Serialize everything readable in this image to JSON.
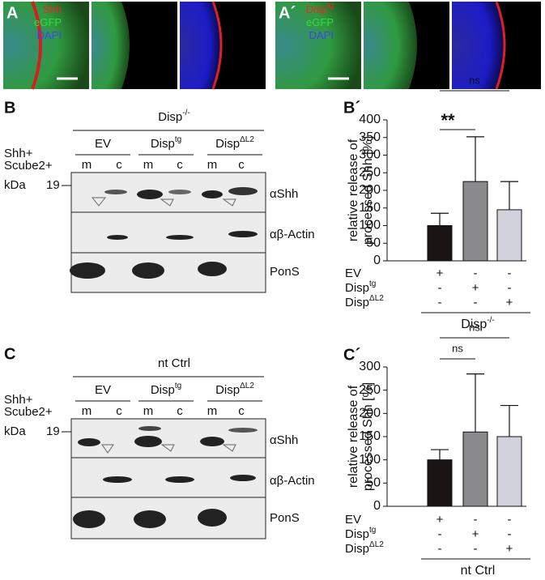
{
  "micrographs": [
    {
      "panel": "A",
      "channels": [
        {
          "label": "Shh"
        },
        {
          "label": "eGFP"
        },
        {
          "label": "DAPI"
        }
      ]
    },
    {
      "panel": "A´",
      "channels": [
        {
          "label": "Disp",
          "sup": "tg"
        },
        {
          "label": "eGFP"
        },
        {
          "label": "DAPI"
        }
      ]
    }
  ],
  "blots": [
    {
      "panel": "B",
      "condition": {
        "label": "Disp",
        "sup": "-/-"
      },
      "groups": [
        {
          "label": "EV"
        },
        {
          "label": "Disp",
          "sup": "tg"
        },
        {
          "label": "Disp",
          "sup": "ΔL2"
        }
      ],
      "treatment": [
        "Shh+",
        "Scube2+"
      ],
      "lanes": [
        "m",
        "c",
        "m",
        "c",
        "m",
        "c"
      ],
      "marker_unit": "kDa",
      "marker": "19",
      "rows": [
        "αShh",
        "αβ-Actin",
        "PonS"
      ]
    },
    {
      "panel": "C",
      "condition": {
        "label": "nt Ctrl"
      },
      "groups": [
        {
          "label": "EV"
        },
        {
          "label": "Disp",
          "sup": "tg"
        },
        {
          "label": "Disp",
          "sup": "ΔL2"
        }
      ],
      "treatment": [
        "Shh+",
        "Scube2+"
      ],
      "lanes": [
        "m",
        "c",
        "m",
        "c",
        "m",
        "c"
      ],
      "marker_unit": "kDa",
      "marker": "19",
      "rows": [
        "αShh",
        "αβ-Actin",
        "PonS"
      ]
    }
  ],
  "chart_data": [
    {
      "type": "bar",
      "panel": "B´",
      "ylabel": [
        "relative release of",
        "processed Shh [%]"
      ],
      "values": [
        100,
        225,
        145
      ],
      "errors": [
        35,
        127,
        80
      ],
      "colors": [
        "#1a1514",
        "#8a8a8c",
        "#d2d2dc"
      ],
      "ylim": [
        0,
        400
      ],
      "yticks": [
        0,
        50,
        100,
        150,
        200,
        250,
        300,
        350,
        400
      ],
      "rows": [
        {
          "label": "EV",
          "signs": [
            "+",
            "-",
            "-"
          ]
        },
        {
          "label": "Disp",
          "sup": "tg",
          "signs": [
            "-",
            "+",
            "-"
          ]
        },
        {
          "label": "Disp",
          "sup": "ΔL2",
          "signs": [
            "-",
            "-",
            "+"
          ]
        }
      ],
      "group_label": {
        "label": "Disp",
        "sup": "-/-"
      },
      "annotations": [
        {
          "text": "**",
          "from": 0,
          "to": 1
        },
        {
          "text": "ns",
          "from": 0,
          "to": 2
        }
      ]
    },
    {
      "type": "bar",
      "panel": "C´",
      "ylabel": [
        "relative release of",
        "processed Shh [%]"
      ],
      "values": [
        100,
        160,
        150
      ],
      "errors": [
        22,
        125,
        67
      ],
      "colors": [
        "#1a1514",
        "#8a8a8c",
        "#d2d2dc"
      ],
      "ylim": [
        0,
        300
      ],
      "yticks": [
        0,
        50,
        100,
        150,
        200,
        250,
        300
      ],
      "rows": [
        {
          "label": "EV",
          "signs": [
            "+",
            "-",
            "-"
          ]
        },
        {
          "label": "Disp",
          "sup": "tg",
          "signs": [
            "-",
            "+",
            "-"
          ]
        },
        {
          "label": "Disp",
          "sup": "ΔL2",
          "signs": [
            "-",
            "-",
            "+"
          ]
        }
      ],
      "group_label": {
        "label": "nt Ctrl"
      },
      "annotations": [
        {
          "text": "ns",
          "from": 0,
          "to": 1
        },
        {
          "text": "ns",
          "from": 0,
          "to": 2
        }
      ]
    }
  ]
}
